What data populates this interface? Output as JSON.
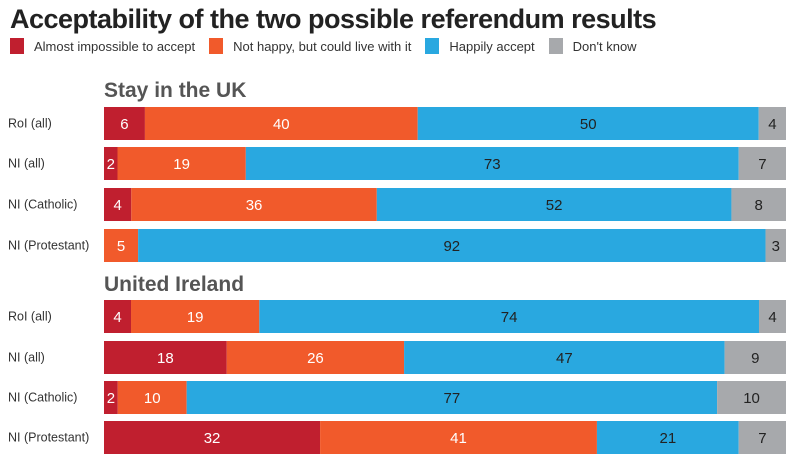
{
  "chart_data": {
    "type": "bar",
    "orientation": "horizontal",
    "stacked": true,
    "title": "Acceptability of the two possible referendum results",
    "legend": {
      "placement": "top-left"
    },
    "series_names": [
      "Almost impossible to accept",
      "Not happy, but could live with it",
      "Happily accept",
      "Don't know"
    ],
    "colors": [
      "#c01f2f",
      "#f15a2b",
      "#29a8e0",
      "#a7a9ac"
    ],
    "label_colors": [
      "#ffffff",
      "#ffffff",
      "#222222",
      "#222222"
    ],
    "groups": [
      {
        "title": "Stay in the UK",
        "rows": [
          {
            "label": "RoI (all)",
            "values": [
              6,
              40,
              50,
              4
            ]
          },
          {
            "label": "NI (all)",
            "values": [
              2,
              19,
              73,
              7
            ]
          },
          {
            "label": "NI (Catholic)",
            "values": [
              4,
              36,
              52,
              8
            ]
          },
          {
            "label": "NI (Protestant)",
            "values": [
              0,
              5,
              92,
              3
            ]
          }
        ]
      },
      {
        "title": "United Ireland",
        "rows": [
          {
            "label": "RoI (all)",
            "values": [
              4,
              19,
              74,
              4
            ]
          },
          {
            "label": "NI (all)",
            "values": [
              18,
              26,
              47,
              9
            ]
          },
          {
            "label": "NI (Catholic)",
            "values": [
              2,
              10,
              77,
              10
            ]
          },
          {
            "label": "NI (Protestant)",
            "values": [
              32,
              41,
              21,
              7
            ]
          }
        ]
      }
    ]
  }
}
